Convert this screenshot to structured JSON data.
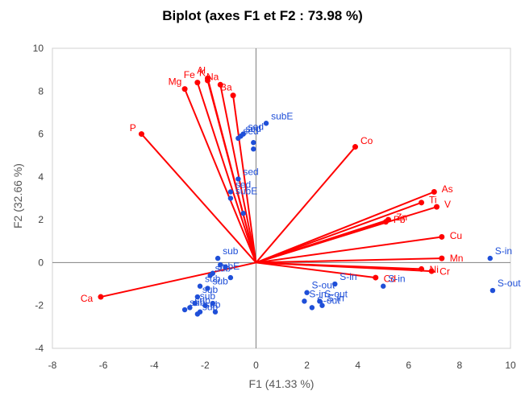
{
  "chart_data": {
    "type": "scatter",
    "title": "Biplot (axes F1 et F2 : 73.98 %)",
    "xlabel": "F1 (41.33 %)",
    "ylabel": "F2 (32.66 %)",
    "xlim": [
      -8,
      10
    ],
    "ylim": [
      -4,
      10
    ],
    "xticks": [
      "-8",
      "-6",
      "-4",
      "-2",
      "0",
      "2",
      "4",
      "6",
      "8",
      "10"
    ],
    "yticks": [
      "-4",
      "-2",
      "0",
      "2",
      "4",
      "6",
      "8",
      "10"
    ],
    "grid": false,
    "colors": {
      "variables": "#ff0000",
      "observations": "#1f4fd8",
      "axis": "#808080"
    },
    "variables": [
      {
        "name": "Mg",
        "x": -2.8,
        "y": 8.1
      },
      {
        "name": "Fe",
        "x": -2.3,
        "y": 8.4
      },
      {
        "name": "K",
        "x": -1.9,
        "y": 8.5
      },
      {
        "name": "Al",
        "x": -1.9,
        "y": 8.6
      },
      {
        "name": "Na",
        "x": -1.4,
        "y": 8.3
      },
      {
        "name": "Ba",
        "x": -0.9,
        "y": 7.8
      },
      {
        "name": "P",
        "x": -4.5,
        "y": 6.0
      },
      {
        "name": "Co",
        "x": 3.9,
        "y": 5.4
      },
      {
        "name": "As",
        "x": 7.0,
        "y": 3.3
      },
      {
        "name": "Ti",
        "x": 6.5,
        "y": 2.8
      },
      {
        "name": "V",
        "x": 7.1,
        "y": 2.6
      },
      {
        "name": "Zn",
        "x": 5.2,
        "y": 2.0
      },
      {
        "name": "Pb",
        "x": 5.1,
        "y": 1.9
      },
      {
        "name": "Cu",
        "x": 7.3,
        "y": 1.2
      },
      {
        "name": "Mn",
        "x": 7.3,
        "y": 0.2
      },
      {
        "name": "Ni",
        "x": 6.5,
        "y": -0.3
      },
      {
        "name": "Cr",
        "x": 6.9,
        "y": -0.4
      },
      {
        "name": "Cd",
        "x": 4.7,
        "y": -0.7
      },
      {
        "name": "Ca",
        "x": -6.1,
        "y": -1.6
      }
    ],
    "observations": [
      {
        "name": "subE",
        "x": 0.4,
        "y": 6.5
      },
      {
        "name": "",
        "x": -0.1,
        "y": 5.6
      },
      {
        "name": "",
        "x": -0.1,
        "y": 5.3
      },
      {
        "name": "sed",
        "x": -0.5,
        "y": 6.0
      },
      {
        "name": "sed",
        "x": -0.6,
        "y": 5.9
      },
      {
        "name": "sed",
        "x": -0.7,
        "y": 5.8
      },
      {
        "name": "sed",
        "x": -0.7,
        "y": 3.9
      },
      {
        "name": "sed",
        "x": -1.0,
        "y": 3.3
      },
      {
        "name": "subE",
        "x": -1.0,
        "y": 3.0
      },
      {
        "name": "",
        "x": -0.5,
        "y": 2.3
      },
      {
        "name": "sub",
        "x": -1.5,
        "y": 0.2
      },
      {
        "name": "",
        "x": -1.4,
        "y": -0.1
      },
      {
        "name": "",
        "x": -1.2,
        "y": -0.2
      },
      {
        "name": "subE",
        "x": -1.7,
        "y": -0.5
      },
      {
        "name": "sub",
        "x": -1.8,
        "y": -0.6
      },
      {
        "name": "",
        "x": -1.0,
        "y": -0.7
      },
      {
        "name": "sub",
        "x": -2.2,
        "y": -1.1
      },
      {
        "name": "sub",
        "x": -1.9,
        "y": -1.2
      },
      {
        "name": "sub",
        "x": -2.3,
        "y": -1.6
      },
      {
        "name": "sub",
        "x": -2.4,
        "y": -1.9
      },
      {
        "name": "sub",
        "x": -2.6,
        "y": -2.1
      },
      {
        "name": "sub",
        "x": -2.8,
        "y": -2.2
      },
      {
        "name": "sub",
        "x": -2.2,
        "y": -2.3
      },
      {
        "name": "",
        "x": -2.0,
        "y": -2.0
      },
      {
        "name": "",
        "x": -1.7,
        "y": -1.9
      },
      {
        "name": "",
        "x": -1.6,
        "y": -2.3
      },
      {
        "name": "sub",
        "x": -2.3,
        "y": -2.4
      },
      {
        "name": "S-in",
        "x": 9.2,
        "y": 0.2
      },
      {
        "name": "S-out",
        "x": 9.3,
        "y": -1.3
      },
      {
        "name": "S-in",
        "x": 3.1,
        "y": -1.0
      },
      {
        "name": "S-in",
        "x": 5.0,
        "y": -1.1
      },
      {
        "name": "S-out",
        "x": 2.0,
        "y": -1.4
      },
      {
        "name": "S-in",
        "x": 1.9,
        "y": -1.8
      },
      {
        "name": "S-out",
        "x": 2.5,
        "y": -1.8
      },
      {
        "name": "S-in",
        "x": 2.6,
        "y": -2.0
      },
      {
        "name": "S-out",
        "x": 2.2,
        "y": -2.1
      }
    ]
  }
}
